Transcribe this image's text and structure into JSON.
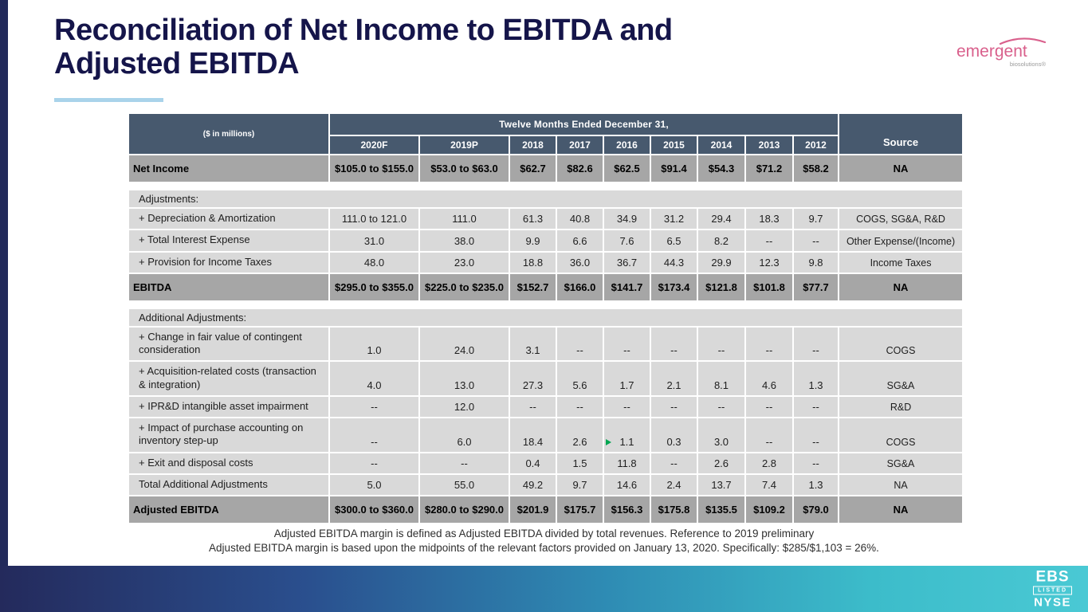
{
  "slide": {
    "title_line1": "Reconciliation of Net Income to EBITDA and",
    "title_line2": "Adjusted EBITDA"
  },
  "logo": {
    "wordmark": "emergent",
    "tagline": "biosolutions®"
  },
  "table": {
    "units_label": "($ in millions)",
    "period_header": "Twelve Months Ended December 31,",
    "source_header": "Source",
    "years": [
      "2020F",
      "2019P",
      "2018",
      "2017",
      "2016",
      "2015",
      "2014",
      "2013",
      "2012"
    ],
    "rows": [
      {
        "label": "Net Income",
        "style": "summary",
        "values": [
          "$105.0 to $155.0",
          "$53.0 to $63.0",
          "$62.7",
          "$82.6",
          "$62.5",
          "$91.4",
          "$54.3",
          "$71.2",
          "$58.2"
        ],
        "source": "NA"
      },
      {
        "label": "Adjustments:",
        "style": "section",
        "gap_before": true
      },
      {
        "label": "+ Depreciation & Amortization",
        "style": "item",
        "values": [
          "111.0 to 121.0",
          "111.0",
          "61.3",
          "40.8",
          "34.9",
          "31.2",
          "29.4",
          "18.3",
          "9.7"
        ],
        "source": "COGS, SG&A, R&D"
      },
      {
        "label": "+ Total Interest Expense",
        "style": "item",
        "values": [
          "31.0",
          "38.0",
          "9.9",
          "6.6",
          "7.6",
          "6.5",
          "8.2",
          "--",
          "--"
        ],
        "source": "Other Expense/(Income)"
      },
      {
        "label": "+ Provision for Income Taxes",
        "style": "item",
        "values": [
          "48.0",
          "23.0",
          "18.8",
          "36.0",
          "36.7",
          "44.3",
          "29.9",
          "12.3",
          "9.8"
        ],
        "source": "Income Taxes"
      },
      {
        "label": "EBITDA",
        "style": "summary",
        "values": [
          "$295.0 to $355.0",
          "$225.0 to $235.0",
          "$152.7",
          "$166.0",
          "$141.7",
          "$173.4",
          "$121.8",
          "$101.8",
          "$77.7"
        ],
        "source": "NA"
      },
      {
        "label": "Additional Adjustments:",
        "style": "section",
        "gap_before": true
      },
      {
        "label": "+ Change in fair value of contingent consideration",
        "style": "item",
        "values": [
          "1.0",
          "24.0",
          "3.1",
          "--",
          "--",
          "--",
          "--",
          "--",
          "--"
        ],
        "source": "COGS"
      },
      {
        "label": "+ Acquisition-related costs (transaction & integration)",
        "style": "item",
        "values": [
          "4.0",
          "13.0",
          "27.3",
          "5.6",
          "1.7",
          "2.1",
          "8.1",
          "4.6",
          "1.3"
        ],
        "source": "SG&A"
      },
      {
        "label": "+ IPR&D intangible asset impairment",
        "style": "item",
        "values": [
          "--",
          "12.0",
          "--",
          "--",
          "--",
          "--",
          "--",
          "--",
          "--"
        ],
        "source": "R&D"
      },
      {
        "label": "+ Impact of purchase accounting on inventory step-up",
        "style": "item",
        "values": [
          "--",
          "6.0",
          "18.4",
          "2.6",
          "1.1",
          "0.3",
          "3.0",
          "--",
          "--"
        ],
        "source": "COGS",
        "note_marker_col": 4
      },
      {
        "label": "+ Exit and disposal costs",
        "style": "item",
        "values": [
          "--",
          "--",
          "0.4",
          "1.5",
          "11.8",
          "--",
          "2.6",
          "2.8",
          "--"
        ],
        "source": "SG&A"
      },
      {
        "label": "Total Additional Adjustments",
        "style": "item",
        "values": [
          "5.0",
          "55.0",
          "49.2",
          "9.7",
          "14.6",
          "2.4",
          "13.7",
          "7.4",
          "1.3"
        ],
        "source": "NA"
      },
      {
        "label": "Adjusted EBITDA",
        "style": "summary",
        "values": [
          "$300.0 to $360.0",
          "$280.0 to $290.0",
          "$201.9",
          "$175.7",
          "$156.3",
          "$175.8",
          "$135.5",
          "$109.2",
          "$79.0"
        ],
        "source": "NA"
      }
    ]
  },
  "footnote": {
    "line1": "Adjusted EBITDA margin is defined as Adjusted EBITDA divided by total revenues. Reference to 2019 preliminary",
    "line2": "Adjusted EBITDA margin is based upon the midpoints of the relevant factors provided on January 13, 2020.  Specifically: $285/$1,103 = 26%."
  },
  "footer_badge": {
    "ticker": "EBS",
    "listed": "LISTED",
    "exchange": "NYSE"
  },
  "colors": {
    "header_bg": "#47596e",
    "summary_bg": "#a6a6a6",
    "row_bg": "#d9d9d9",
    "title": "#15154a",
    "accent_underline": "#a9d3ea",
    "logo_pink": "#d9608c",
    "bar_gradient_left": "#222a5b",
    "marker_green": "#00a651"
  }
}
